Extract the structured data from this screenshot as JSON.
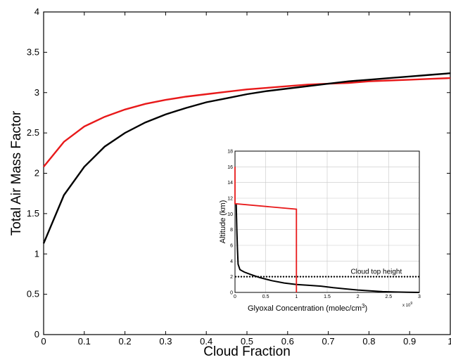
{
  "chart_data": [
    {
      "type": "line",
      "title": "",
      "xlabel": "Cloud Fraction",
      "ylabel": "Total Air Mass Factor",
      "xlim": [
        0,
        1
      ],
      "ylim": [
        0,
        4
      ],
      "xticks": [
        "0",
        "0.1",
        "0.2",
        "0.3",
        "0.4",
        "0.5",
        "0.6",
        "0.7",
        "0.8",
        "0.9",
        "1"
      ],
      "yticks": [
        "0",
        "0.5",
        "1",
        "1.5",
        "2",
        "2.5",
        "3",
        "3.5",
        "4"
      ],
      "grid": false,
      "colors": {
        "red": "#e8191a",
        "black": "#000000"
      },
      "series": [
        {
          "color": "red",
          "x": [
            0,
            0.05,
            0.1,
            0.15,
            0.2,
            0.25,
            0.3,
            0.35,
            0.4,
            0.45,
            0.5,
            0.55,
            0.6,
            0.65,
            0.7,
            0.75,
            0.8,
            0.85,
            0.9,
            0.95,
            1.0
          ],
          "y": [
            2.08,
            2.39,
            2.58,
            2.7,
            2.79,
            2.86,
            2.91,
            2.95,
            2.98,
            3.01,
            3.04,
            3.06,
            3.08,
            3.1,
            3.11,
            3.12,
            3.14,
            3.15,
            3.16,
            3.17,
            3.18
          ]
        },
        {
          "color": "black",
          "x": [
            0,
            0.05,
            0.1,
            0.15,
            0.2,
            0.25,
            0.3,
            0.35,
            0.4,
            0.45,
            0.5,
            0.55,
            0.6,
            0.65,
            0.7,
            0.75,
            0.8,
            0.85,
            0.9,
            0.95,
            1.0
          ],
          "y": [
            1.13,
            1.73,
            2.08,
            2.33,
            2.5,
            2.63,
            2.73,
            2.81,
            2.88,
            2.93,
            2.98,
            3.02,
            3.05,
            3.08,
            3.11,
            3.14,
            3.16,
            3.18,
            3.2,
            3.22,
            3.24
          ]
        }
      ]
    },
    {
      "type": "line",
      "title": "",
      "xlabel": "Glyoxal Concentration (molec/cm",
      "xlabel_sup": "3",
      "x_multiplier": "x 10",
      "x_multiplier_exp": "9",
      "ylabel": "Altitude (km)",
      "xlim": [
        0,
        3
      ],
      "ylim": [
        0,
        18
      ],
      "xticks": [
        "0",
        "0.5",
        "1",
        "1.5",
        "2",
        "2.5",
        "3"
      ],
      "yticks": [
        "0",
        "2",
        "4",
        "6",
        "8",
        "10",
        "12",
        "14",
        "16",
        "18"
      ],
      "grid": true,
      "annotation": "Cloud top height",
      "cloud_top_height": 2,
      "series": [
        {
          "color": "black",
          "x": [
            0.02,
            0.03,
            0.04,
            0.05,
            0.08,
            0.15,
            0.25,
            0.4,
            0.6,
            0.8,
            1.0,
            1.2,
            1.4,
            1.6,
            1.8,
            2.0,
            2.2,
            2.4,
            2.6,
            2.8,
            3.0
          ],
          "y": [
            11.3,
            8.0,
            5.5,
            3.6,
            2.9,
            2.6,
            2.3,
            1.9,
            1.5,
            1.2,
            1.0,
            0.9,
            0.8,
            0.6,
            0.45,
            0.3,
            0.2,
            0.1,
            0.05,
            0.02,
            0.0
          ]
        },
        {
          "color": "red",
          "x": [
            0.0,
            0.0,
            1.0,
            1.0
          ],
          "y": [
            16.0,
            11.3,
            10.6,
            0.0
          ]
        }
      ]
    }
  ]
}
